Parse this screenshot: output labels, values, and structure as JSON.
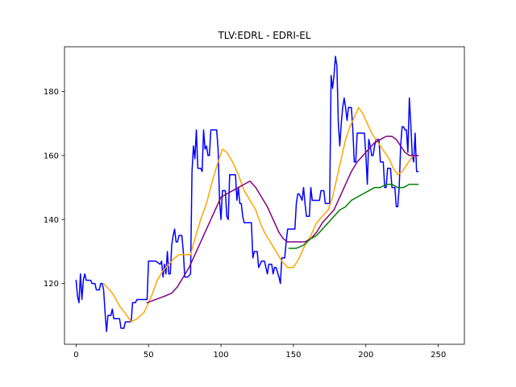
{
  "chart_data": {
    "type": "line",
    "title": "TLV:EDRL - EDRI-EL",
    "xlabel": "",
    "ylabel": "",
    "xlim": [
      -8,
      268
    ],
    "ylim": [
      101,
      194
    ],
    "xticks": [
      0,
      50,
      100,
      150,
      200,
      250
    ],
    "yticks": [
      120,
      140,
      160,
      180
    ],
    "grid": false,
    "series": [
      {
        "color": "#0000ff",
        "points": [
          [
            0,
            121
          ],
          [
            1,
            116
          ],
          [
            2,
            114
          ],
          [
            3,
            123
          ],
          [
            4,
            115
          ],
          [
            5,
            121
          ],
          [
            6,
            123
          ],
          [
            7,
            121
          ],
          [
            8,
            121
          ],
          [
            10,
            121
          ],
          [
            11,
            120
          ],
          [
            13,
            120
          ],
          [
            14,
            118
          ],
          [
            16,
            118
          ],
          [
            17,
            120
          ],
          [
            18,
            120
          ],
          [
            19,
            118
          ],
          [
            20,
            111
          ],
          [
            21,
            105
          ],
          [
            22,
            110
          ],
          [
            24,
            110
          ],
          [
            25,
            112
          ],
          [
            26,
            109
          ],
          [
            28,
            109
          ],
          [
            30,
            109
          ],
          [
            31,
            106
          ],
          [
            33,
            106
          ],
          [
            34,
            108
          ],
          [
            36,
            108
          ],
          [
            38,
            108
          ],
          [
            39,
            114
          ],
          [
            41,
            114
          ],
          [
            42,
            115
          ],
          [
            44,
            115
          ],
          [
            47,
            115
          ],
          [
            49,
            115
          ],
          [
            50,
            127
          ],
          [
            52,
            127
          ],
          [
            55,
            127
          ],
          [
            58,
            126
          ],
          [
            59,
            127
          ],
          [
            60,
            122
          ],
          [
            61,
            126
          ],
          [
            62,
            123
          ],
          [
            63,
            130
          ],
          [
            64,
            123
          ],
          [
            65,
            123
          ],
          [
            66,
            132
          ],
          [
            67,
            135
          ],
          [
            68,
            137
          ],
          [
            69,
            133
          ],
          [
            70,
            133
          ],
          [
            71,
            135
          ],
          [
            73,
            135
          ],
          [
            74,
            130
          ],
          [
            75,
            122
          ],
          [
            77,
            122
          ],
          [
            79,
            123
          ],
          [
            80,
            155
          ],
          [
            81,
            163
          ],
          [
            82,
            159
          ],
          [
            83,
            168
          ],
          [
            84,
            156
          ],
          [
            86,
            156
          ],
          [
            87,
            155
          ],
          [
            88,
            168
          ],
          [
            89,
            162
          ],
          [
            90,
            163
          ],
          [
            91,
            160
          ],
          [
            92,
            160
          ],
          [
            93,
            168
          ],
          [
            95,
            168
          ],
          [
            97,
            168
          ],
          [
            98,
            162
          ],
          [
            99,
            146
          ],
          [
            100,
            140
          ],
          [
            101,
            149
          ],
          [
            103,
            149
          ],
          [
            104,
            141
          ],
          [
            105,
            140
          ],
          [
            106,
            154
          ],
          [
            108,
            154
          ],
          [
            110,
            154
          ],
          [
            111,
            146
          ],
          [
            112,
            150
          ],
          [
            113,
            145
          ],
          [
            114,
            145
          ],
          [
            115,
            141
          ],
          [
            116,
            139
          ],
          [
            118,
            139
          ],
          [
            121,
            139
          ],
          [
            122,
            128
          ],
          [
            123,
            130
          ],
          [
            125,
            130
          ],
          [
            126,
            125
          ],
          [
            127,
            126
          ],
          [
            128,
            127
          ],
          [
            130,
            127
          ],
          [
            131,
            125
          ],
          [
            132,
            123
          ],
          [
            133,
            126
          ],
          [
            135,
            126
          ],
          [
            136,
            123
          ],
          [
            137,
            125
          ],
          [
            138,
            125
          ],
          [
            140,
            122
          ],
          [
            141,
            120
          ],
          [
            142,
            128
          ],
          [
            144,
            128
          ],
          [
            145,
            133
          ],
          [
            146,
            137
          ],
          [
            148,
            137
          ],
          [
            151,
            137
          ],
          [
            152,
            145
          ],
          [
            153,
            148
          ],
          [
            154,
            148
          ],
          [
            156,
            146
          ],
          [
            157,
            150
          ],
          [
            158,
            145
          ],
          [
            159,
            141
          ],
          [
            161,
            141
          ],
          [
            162,
            150
          ],
          [
            163,
            146
          ],
          [
            165,
            146
          ],
          [
            168,
            146
          ],
          [
            169,
            149
          ],
          [
            171,
            149
          ],
          [
            172,
            145
          ],
          [
            174,
            145
          ],
          [
            175,
            145
          ],
          [
            176,
            185
          ],
          [
            177,
            181
          ],
          [
            178,
            185
          ],
          [
            179,
            191
          ],
          [
            180,
            188
          ],
          [
            181,
            170
          ],
          [
            182,
            163
          ],
          [
            183,
            170
          ],
          [
            184,
            175
          ],
          [
            185,
            178
          ],
          [
            186,
            175
          ],
          [
            187,
            171
          ],
          [
            188,
            175
          ],
          [
            190,
            175
          ],
          [
            191,
            168
          ],
          [
            192,
            158
          ],
          [
            193,
            158
          ],
          [
            194,
            167
          ],
          [
            196,
            167
          ],
          [
            199,
            167
          ],
          [
            200,
            160
          ],
          [
            201,
            151
          ],
          [
            202,
            165
          ],
          [
            203,
            163
          ],
          [
            204,
            160
          ],
          [
            205,
            160
          ],
          [
            206,
            163
          ],
          [
            207,
            165
          ],
          [
            209,
            165
          ],
          [
            210,
            158
          ],
          [
            212,
            158
          ],
          [
            213,
            150
          ],
          [
            214,
            150
          ],
          [
            215,
            156
          ],
          [
            217,
            156
          ],
          [
            218,
            150
          ],
          [
            220,
            150
          ],
          [
            221,
            144
          ],
          [
            222,
            144
          ],
          [
            223,
            150
          ],
          [
            224,
            163
          ],
          [
            225,
            169
          ],
          [
            226,
            169
          ],
          [
            227,
            168
          ],
          [
            228,
            168
          ],
          [
            229,
            161
          ],
          [
            230,
            178
          ],
          [
            231,
            170
          ],
          [
            232,
            160
          ],
          [
            233,
            158
          ],
          [
            234,
            167
          ],
          [
            235,
            155
          ],
          [
            236,
            155
          ]
        ]
      },
      {
        "color": "#ffa500",
        "points": [
          [
            19,
            120
          ],
          [
            25,
            117
          ],
          [
            30,
            113
          ],
          [
            35,
            110
          ],
          [
            38,
            108
          ],
          [
            42,
            109
          ],
          [
            47,
            111
          ],
          [
            52,
            116
          ],
          [
            56,
            121
          ],
          [
            60,
            124
          ],
          [
            64,
            126
          ],
          [
            68,
            128
          ],
          [
            71,
            129
          ],
          [
            75,
            129
          ],
          [
            79,
            129
          ],
          [
            82,
            134
          ],
          [
            86,
            140
          ],
          [
            90,
            145
          ],
          [
            94,
            152
          ],
          [
            98,
            158
          ],
          [
            101,
            162
          ],
          [
            104,
            161
          ],
          [
            108,
            158
          ],
          [
            112,
            154
          ],
          [
            116,
            149
          ],
          [
            120,
            146
          ],
          [
            124,
            143
          ],
          [
            127,
            139
          ],
          [
            130,
            136
          ],
          [
            134,
            133
          ],
          [
            138,
            130
          ],
          [
            142,
            127
          ],
          [
            146,
            125
          ],
          [
            150,
            125
          ],
          [
            154,
            128
          ],
          [
            158,
            132
          ],
          [
            162,
            135
          ],
          [
            166,
            139
          ],
          [
            170,
            141
          ],
          [
            174,
            143
          ],
          [
            177,
            147
          ],
          [
            180,
            153
          ],
          [
            183,
            159
          ],
          [
            186,
            165
          ],
          [
            189,
            169
          ],
          [
            192,
            172
          ],
          [
            195,
            175
          ],
          [
            198,
            173
          ],
          [
            201,
            170
          ],
          [
            204,
            167
          ],
          [
            207,
            165
          ],
          [
            210,
            163
          ],
          [
            213,
            161
          ],
          [
            216,
            159
          ],
          [
            219,
            156
          ],
          [
            222,
            154
          ],
          [
            225,
            155
          ],
          [
            228,
            157
          ],
          [
            231,
            159
          ],
          [
            233,
            160
          ],
          [
            236,
            160
          ]
        ]
      },
      {
        "color": "#800080",
        "points": [
          [
            49,
            114
          ],
          [
            55,
            115
          ],
          [
            61,
            116
          ],
          [
            66,
            117
          ],
          [
            70,
            119
          ],
          [
            74,
            122
          ],
          [
            78,
            125
          ],
          [
            82,
            129
          ],
          [
            86,
            133
          ],
          [
            90,
            137
          ],
          [
            94,
            141
          ],
          [
            97,
            144
          ],
          [
            100,
            147
          ],
          [
            104,
            148
          ],
          [
            108,
            149
          ],
          [
            112,
            150
          ],
          [
            116,
            151
          ],
          [
            120,
            152
          ],
          [
            124,
            150
          ],
          [
            128,
            147
          ],
          [
            132,
            144
          ],
          [
            136,
            140
          ],
          [
            140,
            136
          ],
          [
            143,
            134
          ],
          [
            146,
            133
          ],
          [
            150,
            133
          ],
          [
            154,
            133
          ],
          [
            158,
            133
          ],
          [
            162,
            134
          ],
          [
            166,
            136
          ],
          [
            170,
            139
          ],
          [
            174,
            141
          ],
          [
            178,
            143
          ],
          [
            182,
            147
          ],
          [
            186,
            151
          ],
          [
            190,
            155
          ],
          [
            194,
            158
          ],
          [
            198,
            160
          ],
          [
            202,
            162
          ],
          [
            206,
            164
          ],
          [
            210,
            165
          ],
          [
            214,
            166
          ],
          [
            218,
            166
          ],
          [
            221,
            165
          ],
          [
            224,
            163
          ],
          [
            227,
            161
          ],
          [
            230,
            160
          ],
          [
            233,
            160
          ],
          [
            236,
            160
          ]
        ]
      },
      {
        "color": "#008000",
        "points": [
          [
            147,
            131
          ],
          [
            152,
            131
          ],
          [
            157,
            132
          ],
          [
            162,
            134
          ],
          [
            166,
            135
          ],
          [
            170,
            137
          ],
          [
            174,
            139
          ],
          [
            178,
            141
          ],
          [
            182,
            143
          ],
          [
            186,
            144
          ],
          [
            190,
            146
          ],
          [
            194,
            147
          ],
          [
            198,
            148
          ],
          [
            202,
            149
          ],
          [
            206,
            150
          ],
          [
            210,
            150
          ],
          [
            214,
            151
          ],
          [
            218,
            151
          ],
          [
            222,
            150
          ],
          [
            226,
            150
          ],
          [
            230,
            151
          ],
          [
            234,
            151
          ],
          [
            236,
            151
          ]
        ]
      }
    ]
  }
}
